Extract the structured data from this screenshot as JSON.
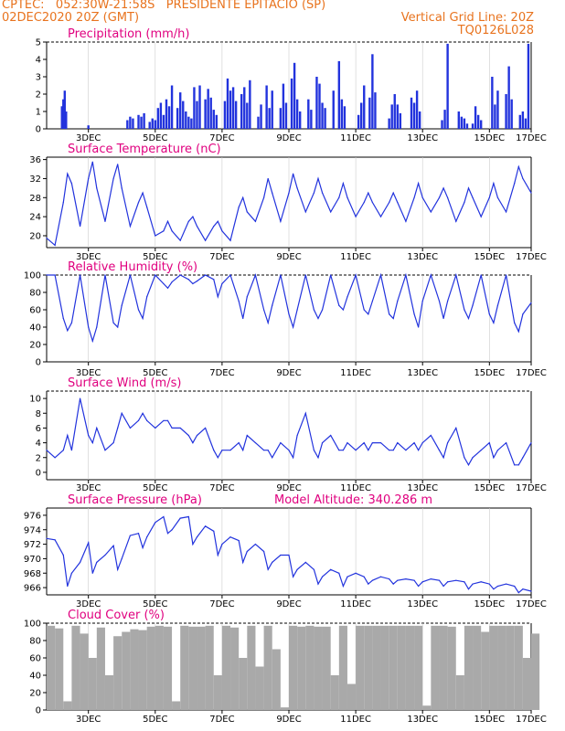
{
  "header": {
    "line1_left": "CPTEC:   052:30W-21:58S   PRESIDENTE EPITACIO (SP)",
    "line2_left": "02DEC2020 20Z (GMT)",
    "line2_right": "Vertical Grid Line: 20Z",
    "line3_right": "TQ0126L028"
  },
  "x_days": [
    "3DEC",
    "5DEC",
    "7DEC",
    "9DEC",
    "11DEC",
    "13DEC",
    "15DEC",
    "17DEC"
  ],
  "colors": {
    "header": "#e8731e",
    "panel_title": "#e0007f",
    "line": "#2233dd",
    "cloud": "#a9a9a9"
  },
  "chart_data": [
    {
      "type": "bar",
      "title": "Precipitation (mm/h)",
      "ylim": [
        0,
        5
      ],
      "yticks": [
        "0",
        "1",
        "2",
        "3",
        "4",
        "5"
      ],
      "x_hours": [
        11,
        12,
        13,
        14,
        30,
        58,
        60,
        62,
        66,
        68,
        70,
        74,
        76,
        78,
        80,
        82,
        84,
        86,
        88,
        90,
        94,
        96,
        98,
        100,
        102,
        104,
        106,
        108,
        110,
        114,
        116,
        118,
        120,
        122,
        128,
        130,
        132,
        134,
        136,
        140,
        142,
        144,
        146,
        152,
        154,
        158,
        160,
        162,
        168,
        170,
        172,
        176,
        178,
        180,
        182,
        188,
        190,
        194,
        196,
        198,
        200,
        206,
        210,
        212,
        214,
        224,
        226,
        228,
        232,
        234,
        236,
        246,
        248,
        250,
        252,
        254,
        262,
        264,
        266,
        268,
        284,
        286,
        288,
        296,
        298,
        300,
        302,
        306,
        308,
        310,
        312,
        320,
        322,
        324,
        330,
        332,
        334,
        340,
        342,
        344,
        346
      ],
      "values": [
        1.3,
        1.7,
        2.2,
        1.0,
        0.2,
        0.5,
        0.7,
        0.6,
        0.8,
        0.7,
        0.9,
        0.4,
        0.6,
        0.5,
        1.2,
        1.5,
        0.8,
        1.7,
        1.3,
        2.5,
        1.2,
        2.1,
        1.6,
        1.0,
        0.7,
        0.6,
        2.4,
        1.6,
        2.5,
        1.7,
        2.3,
        1.8,
        1.1,
        0.8,
        1.6,
        2.9,
        2.2,
        2.4,
        1.6,
        2.0,
        2.4,
        1.5,
        2.8,
        0.7,
        1.4,
        2.5,
        1.2,
        2.2,
        1.2,
        2.6,
        1.5,
        2.9,
        3.8,
        1.7,
        1.0,
        1.7,
        1.1,
        3.0,
        2.6,
        1.5,
        1.2,
        2.2,
        3.9,
        1.7,
        1.3,
        0.8,
        1.5,
        2.5,
        1.8,
        4.3,
        2.1,
        0.6,
        1.4,
        2.0,
        1.4,
        0.9,
        1.8,
        1.5,
        2.2,
        1.0,
        0.5,
        1.1,
        4.9,
        1.0,
        0.7,
        0.6,
        0.3,
        0.3,
        1.3,
        0.8,
        0.5,
        3.0,
        1.4,
        2.2,
        2.0,
        3.6,
        1.7,
        0.8,
        1.0,
        0.6,
        4.9
      ]
    },
    {
      "type": "line",
      "title": "Surface Temperature (nC)",
      "ylim": [
        17.5,
        36.5
      ],
      "yticks": [
        "20",
        "24",
        "28",
        "32",
        "36"
      ],
      "x_hours": [
        0,
        6,
        12,
        15,
        18,
        24,
        30,
        33,
        36,
        42,
        48,
        51,
        54,
        60,
        66,
        69,
        72,
        78,
        84,
        87,
        90,
        96,
        102,
        105,
        108,
        114,
        120,
        123,
        126,
        132,
        138,
        141,
        144,
        150,
        156,
        159,
        162,
        168,
        174,
        177,
        180,
        186,
        192,
        195,
        198,
        204,
        210,
        213,
        216,
        222,
        228,
        231,
        234,
        240,
        246,
        249,
        252,
        258,
        264,
        267,
        270,
        276,
        282,
        285,
        288,
        294,
        300,
        303,
        306,
        312,
        318,
        321,
        324,
        330,
        336,
        339,
        342,
        348
      ],
      "values": [
        19.5,
        18,
        27,
        33,
        31,
        22,
        32,
        35.5,
        30,
        23,
        32,
        35,
        30,
        22,
        27,
        29,
        26,
        20,
        21,
        23,
        21,
        19,
        23,
        24,
        22,
        19,
        22,
        23,
        21,
        19,
        26,
        28,
        25,
        23,
        28,
        32,
        29,
        23,
        29,
        33,
        30,
        25,
        29,
        32,
        29,
        25,
        28,
        31,
        28,
        24,
        27,
        29,
        27,
        24,
        27,
        29,
        27,
        23,
        28,
        31,
        28,
        25,
        28,
        30,
        28,
        23,
        27,
        30,
        28,
        24,
        28,
        31,
        28,
        25,
        31,
        34.5,
        32,
        29
      ]
    },
    {
      "type": "line",
      "title": "Relative Humidity (%)",
      "ylim": [
        0,
        100
      ],
      "yticks": [
        "0",
        "20",
        "40",
        "60",
        "80",
        "100"
      ],
      "x_hours": [
        0,
        6,
        12,
        15,
        18,
        24,
        30,
        33,
        36,
        42,
        48,
        51,
        54,
        60,
        66,
        69,
        72,
        78,
        84,
        87,
        90,
        96,
        102,
        105,
        108,
        114,
        120,
        123,
        126,
        132,
        138,
        141,
        144,
        150,
        156,
        159,
        162,
        168,
        174,
        177,
        180,
        186,
        192,
        195,
        198,
        204,
        210,
        213,
        216,
        222,
        228,
        231,
        234,
        240,
        246,
        249,
        252,
        258,
        264,
        267,
        270,
        276,
        282,
        285,
        288,
        294,
        300,
        303,
        306,
        312,
        318,
        321,
        324,
        330,
        336,
        339,
        342,
        348
      ],
      "values": [
        100,
        100,
        50,
        36,
        45,
        100,
        40,
        24,
        40,
        100,
        45,
        40,
        65,
        100,
        60,
        50,
        75,
        100,
        90,
        85,
        92,
        100,
        95,
        90,
        93,
        100,
        95,
        75,
        90,
        100,
        70,
        50,
        75,
        100,
        60,
        45,
        65,
        100,
        55,
        40,
        60,
        100,
        60,
        50,
        60,
        100,
        65,
        60,
        75,
        100,
        60,
        55,
        70,
        100,
        55,
        50,
        70,
        100,
        55,
        40,
        70,
        100,
        70,
        50,
        70,
        100,
        60,
        50,
        65,
        100,
        55,
        45,
        65,
        100,
        45,
        35,
        55,
        68
      ]
    },
    {
      "type": "line",
      "title": "Surface Wind (m/s)",
      "ylim": [
        -1,
        11
      ],
      "yticks": [
        "0",
        "2",
        "4",
        "6",
        "8",
        "10"
      ],
      "x_hours": [
        0,
        6,
        12,
        15,
        18,
        24,
        30,
        33,
        36,
        42,
        48,
        51,
        54,
        60,
        66,
        69,
        72,
        78,
        84,
        87,
        90,
        96,
        102,
        105,
        108,
        114,
        120,
        123,
        126,
        132,
        138,
        141,
        144,
        150,
        156,
        159,
        162,
        168,
        174,
        177,
        180,
        186,
        192,
        195,
        198,
        204,
        210,
        213,
        216,
        222,
        228,
        231,
        234,
        240,
        246,
        249,
        252,
        258,
        264,
        267,
        270,
        276,
        282,
        285,
        288,
        294,
        300,
        303,
        306,
        312,
        318,
        321,
        324,
        330,
        336,
        339,
        342,
        348
      ],
      "values": [
        3,
        2,
        3,
        5,
        3,
        10,
        5,
        4,
        6,
        3,
        4,
        6,
        8,
        6,
        7,
        8,
        7,
        6,
        7,
        7,
        6,
        6,
        5,
        4,
        5,
        6,
        3,
        2,
        3,
        3,
        4,
        3,
        5,
        4,
        3,
        3,
        2,
        4,
        3,
        2,
        5,
        8,
        3,
        2,
        4,
        5,
        3,
        3,
        4,
        3,
        4,
        3,
        4,
        4,
        3,
        3,
        4,
        3,
        4,
        3,
        4,
        5,
        3,
        2,
        4,
        6,
        2,
        1,
        2,
        3,
        4,
        2,
        3,
        4,
        1,
        1,
        2,
        4
      ]
    },
    {
      "type": "line",
      "title": "Surface Pressure (hPa)",
      "annotation": "Model Altitude: 340.286 m",
      "ylim": [
        965,
        977
      ],
      "yticks": [
        "966",
        "968",
        "970",
        "972",
        "974",
        "976"
      ],
      "x_hours": [
        0,
        6,
        12,
        15,
        18,
        24,
        30,
        33,
        36,
        42,
        48,
        51,
        54,
        60,
        66,
        69,
        72,
        78,
        84,
        87,
        90,
        96,
        102,
        105,
        108,
        114,
        120,
        123,
        126,
        132,
        138,
        141,
        144,
        150,
        156,
        159,
        162,
        168,
        174,
        177,
        180,
        186,
        192,
        195,
        198,
        204,
        210,
        213,
        216,
        222,
        228,
        231,
        234,
        240,
        246,
        249,
        252,
        258,
        264,
        267,
        270,
        276,
        282,
        285,
        288,
        294,
        300,
        303,
        306,
        312,
        318,
        321,
        324,
        330,
        336,
        339,
        342,
        348
      ],
      "values": [
        972.8,
        972.6,
        970.5,
        966.2,
        968,
        969.5,
        972.2,
        968,
        969.5,
        970.5,
        971.8,
        968.5,
        970,
        973.2,
        973.5,
        971.5,
        973,
        975,
        975.8,
        973.5,
        974,
        975.6,
        975.8,
        972,
        973,
        974.5,
        973.8,
        970.5,
        972,
        973,
        972.5,
        969.5,
        971,
        972,
        971,
        968.5,
        969.5,
        970.5,
        970.5,
        967.5,
        968.5,
        969.5,
        968.5,
        966.5,
        967.5,
        968.5,
        968,
        966.2,
        967.5,
        968,
        967.5,
        966.5,
        967,
        967.5,
        967.2,
        966.5,
        967,
        967.2,
        967,
        966.2,
        966.8,
        967.2,
        967,
        966.2,
        966.8,
        967,
        966.8,
        965.8,
        966.5,
        966.8,
        966.5,
        965.8,
        966.2,
        966.5,
        966.2,
        965.3,
        965.8,
        965.5
      ]
    },
    {
      "type": "bar",
      "title": "Cloud Cover (%)",
      "ylim": [
        0,
        100
      ],
      "yticks": [
        "0",
        "20",
        "40",
        "60",
        "80",
        "100"
      ],
      "x_hours": [
        0,
        6,
        12,
        18,
        24,
        30,
        36,
        42,
        48,
        54,
        60,
        66,
        72,
        78,
        84,
        90,
        96,
        102,
        108,
        114,
        120,
        126,
        132,
        138,
        144,
        150,
        156,
        162,
        168,
        174,
        180,
        186,
        192,
        198,
        204,
        210,
        216,
        222,
        228,
        234,
        240,
        246,
        252,
        258,
        264,
        270,
        276,
        282,
        288,
        294,
        300,
        306,
        312,
        318,
        324,
        330,
        336,
        342,
        348
      ],
      "values": [
        97,
        94,
        10,
        97,
        88,
        60,
        95,
        40,
        85,
        90,
        93,
        92,
        96,
        97,
        96,
        10,
        97,
        96,
        96,
        97,
        40,
        97,
        95,
        60,
        97,
        50,
        97,
        70,
        3,
        97,
        96,
        97,
        96,
        96,
        40,
        97,
        30,
        97,
        97,
        97,
        97,
        97,
        97,
        97,
        97,
        5,
        97,
        97,
        96,
        40,
        97,
        97,
        90,
        97,
        97,
        97,
        97,
        60,
        88
      ]
    }
  ]
}
